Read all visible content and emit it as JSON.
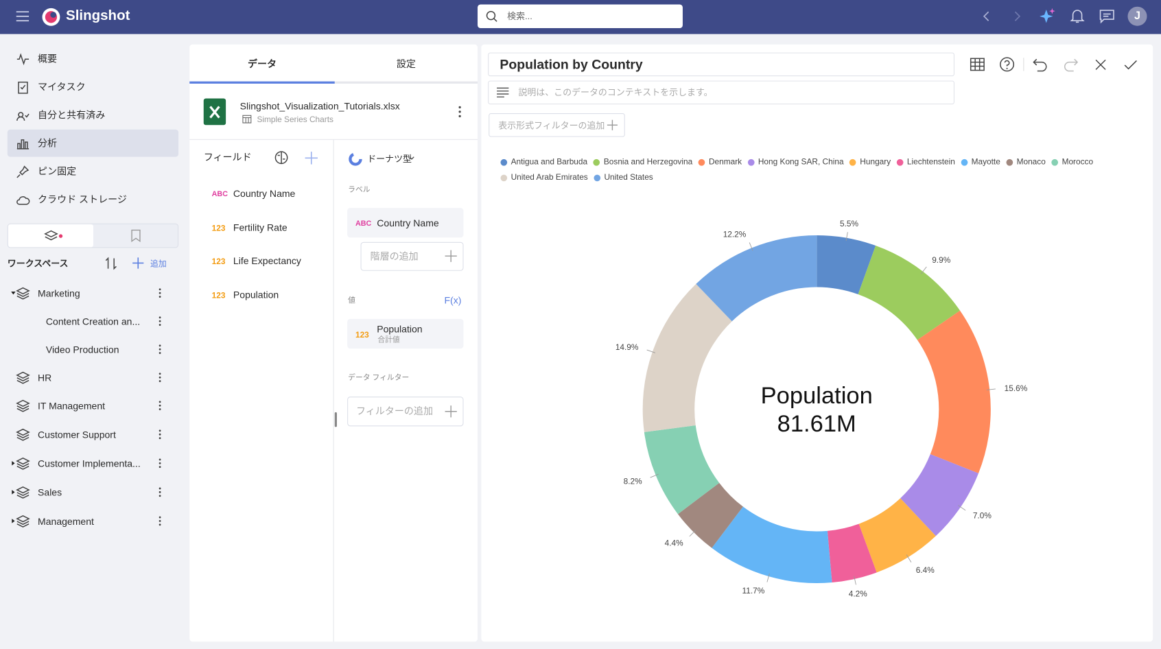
{
  "app": {
    "name": "Slingshot",
    "search_placeholder": "検索...",
    "avatar": "J"
  },
  "nav": [
    "概要",
    "マイタスク",
    "自分と共有済み",
    "分析",
    "ピン固定",
    "クラウド ストレージ"
  ],
  "workspace": {
    "title": "ワークスペース",
    "add": "追加",
    "items": [
      {
        "name": "Marketing",
        "children": [
          "Content Creation an...",
          "Video Production"
        ]
      },
      {
        "name": "HR"
      },
      {
        "name": "IT Management"
      },
      {
        "name": "Customer Support"
      },
      {
        "name": "Customer Implementa..."
      },
      {
        "name": "Sales"
      },
      {
        "name": "Management"
      }
    ]
  },
  "editor": {
    "tabs": [
      "データ",
      "設定"
    ],
    "file": {
      "name": "Slingshot_Visualization_Tutorials.xlsx",
      "sheet": "Simple Series Charts"
    },
    "fields_title": "フィールド",
    "fields": [
      {
        "type": "ABC",
        "name": "Country Name"
      },
      {
        "type": "123",
        "name": "Fertility Rate"
      },
      {
        "type": "123",
        "name": "Life Expectancy"
      },
      {
        "type": "123",
        "name": "Population"
      }
    ],
    "chart_type": "ドーナツ型",
    "label_section": "ラベル",
    "label_field": {
      "type": "ABC",
      "name": "Country Name"
    },
    "add_hierarchy": "階層の追加",
    "value_section": "値",
    "fx": "F(x)",
    "value_field": {
      "type": "123",
      "name": "Population",
      "aggregation": "合計値"
    },
    "data_filter": "データ フィルター",
    "add_filter": "フィルターの追加"
  },
  "viz": {
    "title": "Population by Country",
    "description_placeholder": "説明は、このデータのコンテキストを示します。",
    "add_format_filter": "表示形式フィルターの追加"
  },
  "chart_data": {
    "type": "donut",
    "categories": [
      "Antigua and Barbuda",
      "Bosnia and Herzegovina",
      "Denmark",
      "Hong Kong SAR, China",
      "Hungary",
      "Liechtenstein",
      "Mayotte",
      "Monaco",
      "Morocco",
      "United Arab Emirates",
      "United States"
    ],
    "values": [
      5.5,
      9.9,
      15.6,
      7.0,
      6.4,
      4.2,
      11.7,
      4.4,
      8.2,
      14.9,
      12.2
    ],
    "value_labels": [
      "5.5%",
      "9.9%",
      "15.6%",
      "7.0%",
      "6.4%",
      "4.2%",
      "11.7%",
      "4.4%",
      "8.2%",
      "14.9%",
      "12.2%"
    ],
    "colors": [
      "#5b8bcb",
      "#9ccc5e",
      "#ff8a5c",
      "#a98be8",
      "#ffb347",
      "#f0609a",
      "#64b5f6",
      "#a1887f",
      "#86d0b3",
      "#ddd3c8",
      "#72a5e3"
    ],
    "center_title": "Population",
    "center_value": "81.61M",
    "legend": "top"
  }
}
